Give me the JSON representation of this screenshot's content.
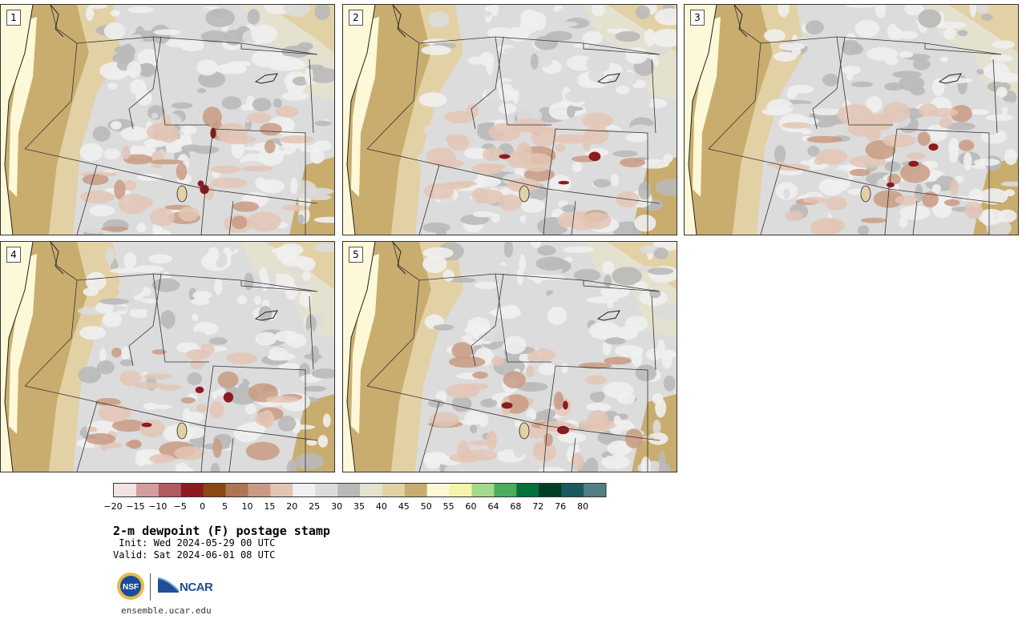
{
  "panels": [
    {
      "label": "1"
    },
    {
      "label": "2"
    },
    {
      "label": "3"
    },
    {
      "label": "4"
    },
    {
      "label": "5"
    }
  ],
  "colorbar": {
    "ticks": [
      "−20",
      "−15",
      "−10",
      "−5",
      "0",
      "5",
      "10",
      "15",
      "20",
      "25",
      "30",
      "35",
      "40",
      "45",
      "50",
      "55",
      "60",
      "64",
      "68",
      "72",
      "76",
      "80"
    ],
    "colors": [
      "#f3e3e3",
      "#d49d9e",
      "#b25a5f",
      "#8c1a1f",
      "#8a4712",
      "#ad7553",
      "#c99b84",
      "#e3c5b5",
      "#f0f0f0",
      "#dcdcdc",
      "#b9b9b9",
      "#e4e1cf",
      "#e3d1a6",
      "#c9ad6f",
      "#fdf8d7",
      "#f6f4a8",
      "#a3db8c",
      "#4aad5e",
      "#00733c",
      "#003d24",
      "#185b5e",
      "#4f7f84"
    ]
  },
  "title": "2-m dewpoint (F) postage stamp",
  "init": " Init: Wed 2024-05-29 00 UTC",
  "valid": "Valid: Sat 2024-06-01 08 UTC",
  "logos": {
    "nsf": "NSF",
    "ncar": "NCAR"
  },
  "site": "ensemble.ucar.edu",
  "map_colors": {
    "ocean": "#fdf8d7",
    "moist_coast": "#c9ad6f",
    "tan": "#e3d1a6",
    "plains": "#e4e1cf",
    "light_gray": "#f0f0f0",
    "gray": "#dcdcdc",
    "dark_gray": "#b9b9b9",
    "dry_brown": "#e3c5b5",
    "drier_brown": "#c99b84",
    "driest": "#8c1a1f"
  }
}
